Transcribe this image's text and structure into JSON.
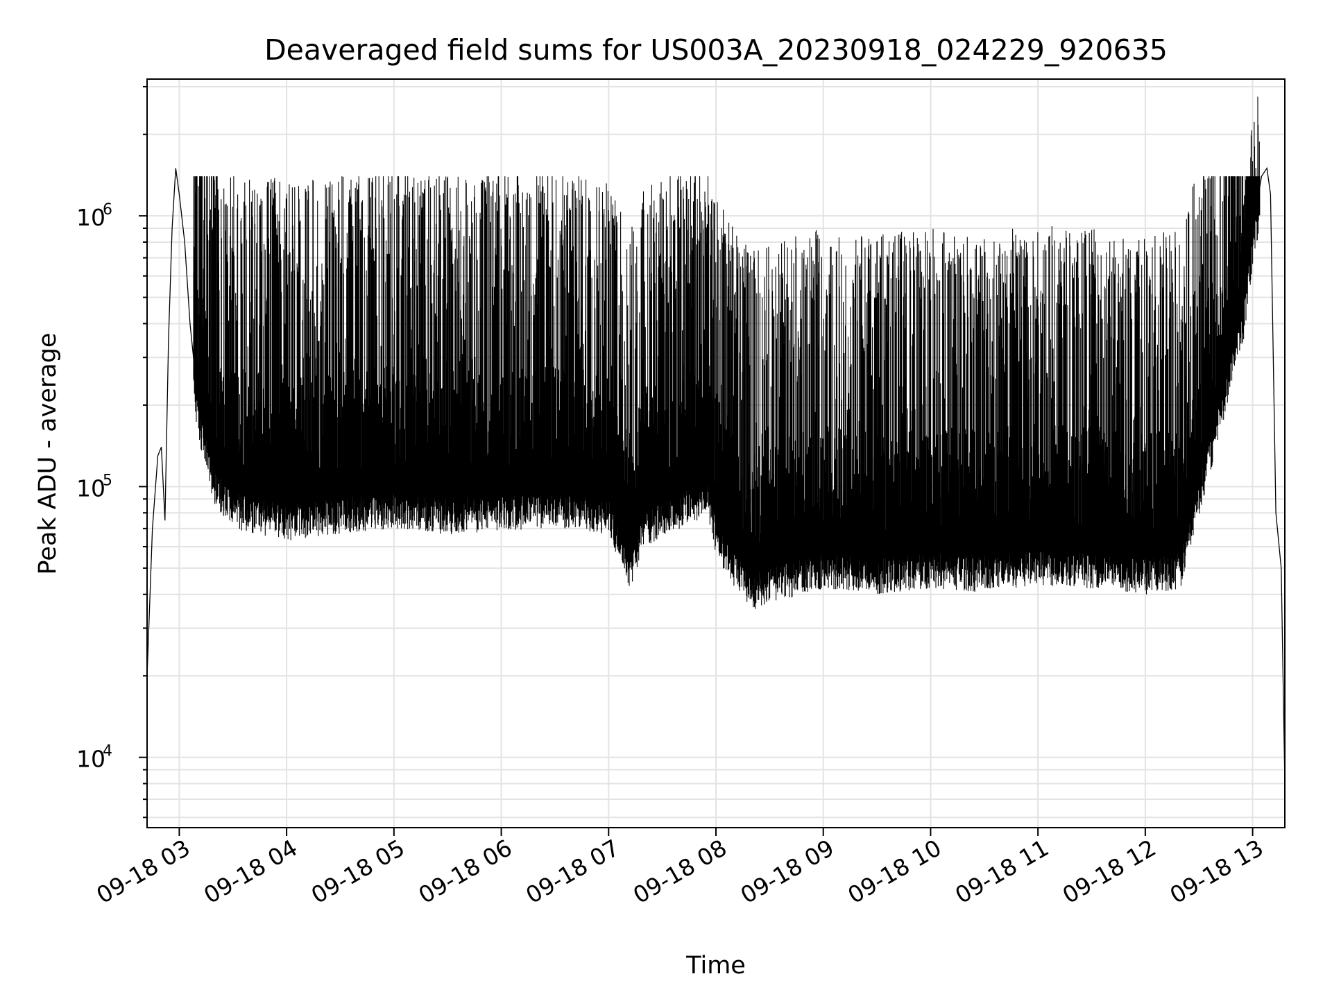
{
  "chart_data": {
    "type": "line",
    "title": "Deaveraged field sums for US003A_20230918_024229_920635",
    "xlabel": "Time",
    "ylabel": "Peak ADU - average",
    "yscale": "log",
    "ylim": [
      5500,
      3200000
    ],
    "xlim": [
      "09-18 02:42",
      "09-18 13:18"
    ],
    "x_ticks": [
      "09-18 03",
      "09-18 04",
      "09-18 05",
      "09-18 06",
      "09-18 07",
      "09-18 08",
      "09-18 09",
      "09-18 10",
      "09-18 11",
      "09-18 12",
      "09-18 13"
    ],
    "y_ticks": [
      {
        "value": 10000,
        "base": "10",
        "exp": "4"
      },
      {
        "value": 100000,
        "base": "10",
        "exp": "5"
      },
      {
        "value": 1000000,
        "base": "10",
        "exp": "6"
      }
    ],
    "grid": true,
    "line_color": "#000000",
    "series": [
      {
        "x": [
          "09-18 02:42",
          "09-18 02:45",
          "09-18 02:48",
          "09-18 02:50",
          "09-18 02:52",
          "09-18 02:54",
          "09-18 02:56",
          "09-18 02:58",
          "09-18 03:00",
          "09-18 03:03",
          "09-18 03:06",
          "09-18 03:10",
          "09-18 03:15",
          "09-18 03:20",
          "09-18 03:30",
          "09-18 03:45",
          "09-18 04:00",
          "09-18 04:30",
          "09-18 05:00",
          "09-18 05:30",
          "09-18 06:00",
          "09-18 06:30",
          "09-18 07:00",
          "09-18 07:12",
          "09-18 07:20",
          "09-18 07:40",
          "09-18 07:55",
          "09-18 08:00",
          "09-18 08:10",
          "09-18 08:20",
          "09-18 08:40",
          "09-18 09:00",
          "09-18 09:30",
          "09-18 10:00",
          "09-18 10:30",
          "09-18 11:00",
          "09-18 11:30",
          "09-18 12:00",
          "09-18 12:20",
          "09-18 12:40",
          "09-18 12:55",
          "09-18 13:00",
          "09-18 13:05",
          "09-18 13:08",
          "09-18 13:10",
          "09-18 13:13",
          "09-18 13:16",
          "09-18 13:18"
        ],
        "y": [
          20000,
          70000,
          130000,
          140000,
          75000,
          350000,
          900000,
          1500000,
          1200000,
          800000,
          400000,
          220000,
          160000,
          120000,
          100000,
          95000,
          90000,
          95000,
          100000,
          95000,
          98000,
          100000,
          95000,
          60000,
          85000,
          100000,
          110000,
          80000,
          60000,
          50000,
          55000,
          60000,
          57000,
          60000,
          58000,
          62000,
          60000,
          57000,
          60000,
          200000,
          500000,
          900000,
          1400000,
          1500000,
          1200000,
          80000,
          50000,
          8000
        ]
      }
    ]
  }
}
